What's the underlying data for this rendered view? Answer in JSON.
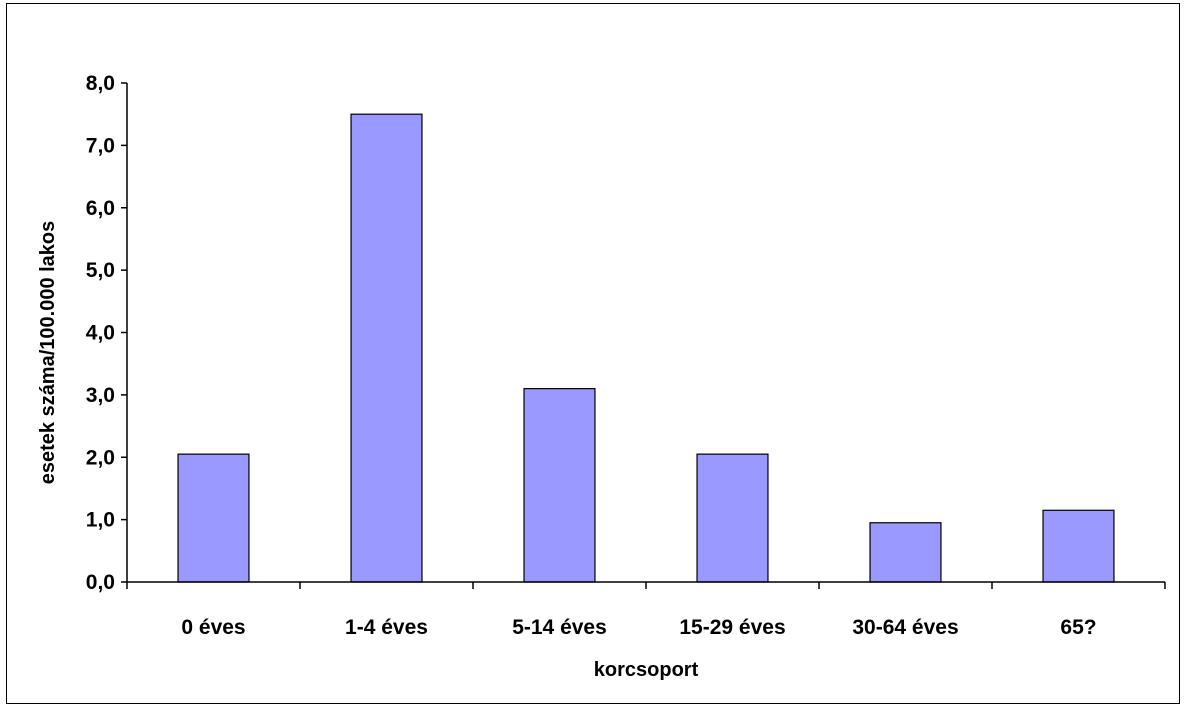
{
  "chart_data": {
    "type": "bar",
    "title": "",
    "xlabel": "korcsoport",
    "ylabel": "esetek száma/100.000 lakos",
    "categories": [
      "0 éves",
      "1-4 éves",
      "5-14 éves",
      "15-29 éves",
      "30-64 éves",
      "65?"
    ],
    "values": [
      2.05,
      7.5,
      3.1,
      2.05,
      0.95,
      1.15
    ],
    "ylim": [
      0,
      8
    ],
    "yticks": [
      0,
      1,
      2,
      3,
      4,
      5,
      6,
      7,
      8
    ],
    "ytick_labels": [
      "0,0",
      "1,0",
      "2,0",
      "3,0",
      "4,0",
      "5,0",
      "6,0",
      "7,0",
      "8,0"
    ],
    "grid": false,
    "legend": "none",
    "colors": {
      "bar_fill": "#9999ff",
      "bar_stroke": "#000000",
      "axis": "#000000",
      "background": "#ffffff"
    }
  }
}
